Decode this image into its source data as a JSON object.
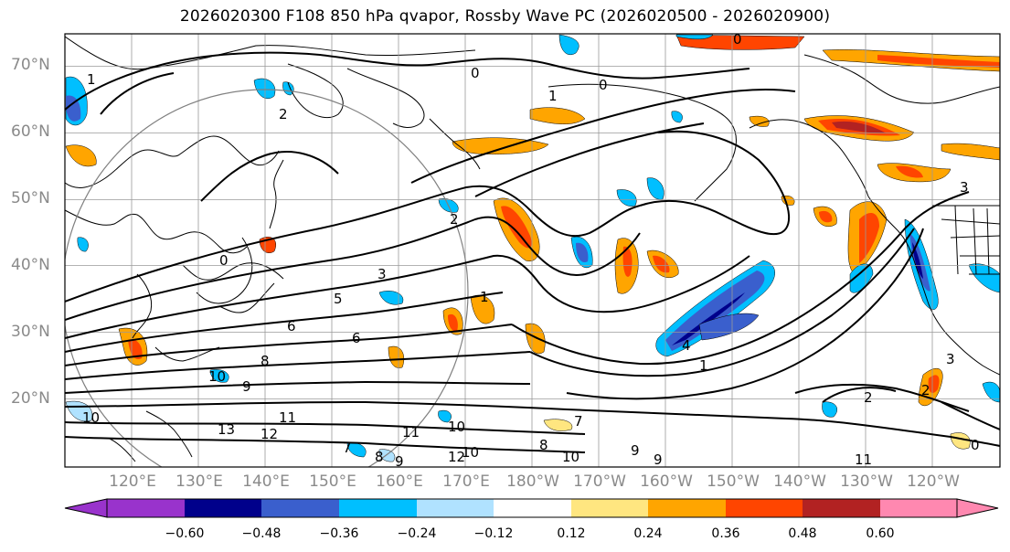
{
  "title": "2026020300 F108 850 hPa qvapor, Rossby Wave PC (2026020500 - 2026020900)",
  "lat_labels": [
    "70°N",
    "60°N",
    "50°N",
    "40°N",
    "30°N",
    "20°N"
  ],
  "lon_labels": [
    "120°E",
    "130°E",
    "140°E",
    "150°E",
    "160°E",
    "170°E",
    "180°W",
    "170°W",
    "160°W",
    "150°W",
    "140°W",
    "130°W",
    "120°W"
  ],
  "colorbar": {
    "colors": [
      "#9933cc",
      "#00008b",
      "#3a5fcd",
      "#00bfff",
      "#b0e2ff",
      "#ffffff",
      "#ffe680",
      "#ffa500",
      "#ff4500",
      "#b22222",
      "#ff88b0"
    ],
    "tick_labels": [
      "−0.60",
      "−0.48",
      "−0.36",
      "−0.24",
      "−0.12",
      "0.12",
      "0.24",
      "0.36",
      "0.48",
      "0.60"
    ]
  },
  "contour_labels": [
    "0",
    "1",
    "0",
    "0",
    "1",
    "0",
    "2",
    "3",
    "5",
    "6",
    "6",
    "8",
    "9",
    "10",
    "11",
    "12",
    "13",
    "10",
    "10",
    "11",
    "12",
    "9",
    "8",
    "7",
    "9",
    "10",
    "11",
    "7",
    "9",
    "10",
    "8",
    "4",
    "3",
    "2",
    "1",
    "2",
    "0",
    "3",
    "1",
    "2"
  ],
  "map": {
    "lat_range": [
      10,
      75
    ],
    "lon_range_deg_east": [
      110,
      250
    ],
    "fill_colors": {
      "orange": "#ffa500",
      "red_orange": "#ff4500",
      "yellow": "#ffe680",
      "dark_red": "#b22222",
      "light_blue": "#b0e2ff",
      "cyan": "#00bfff",
      "blue": "#3a5fcd",
      "navy": "#00008b"
    }
  }
}
